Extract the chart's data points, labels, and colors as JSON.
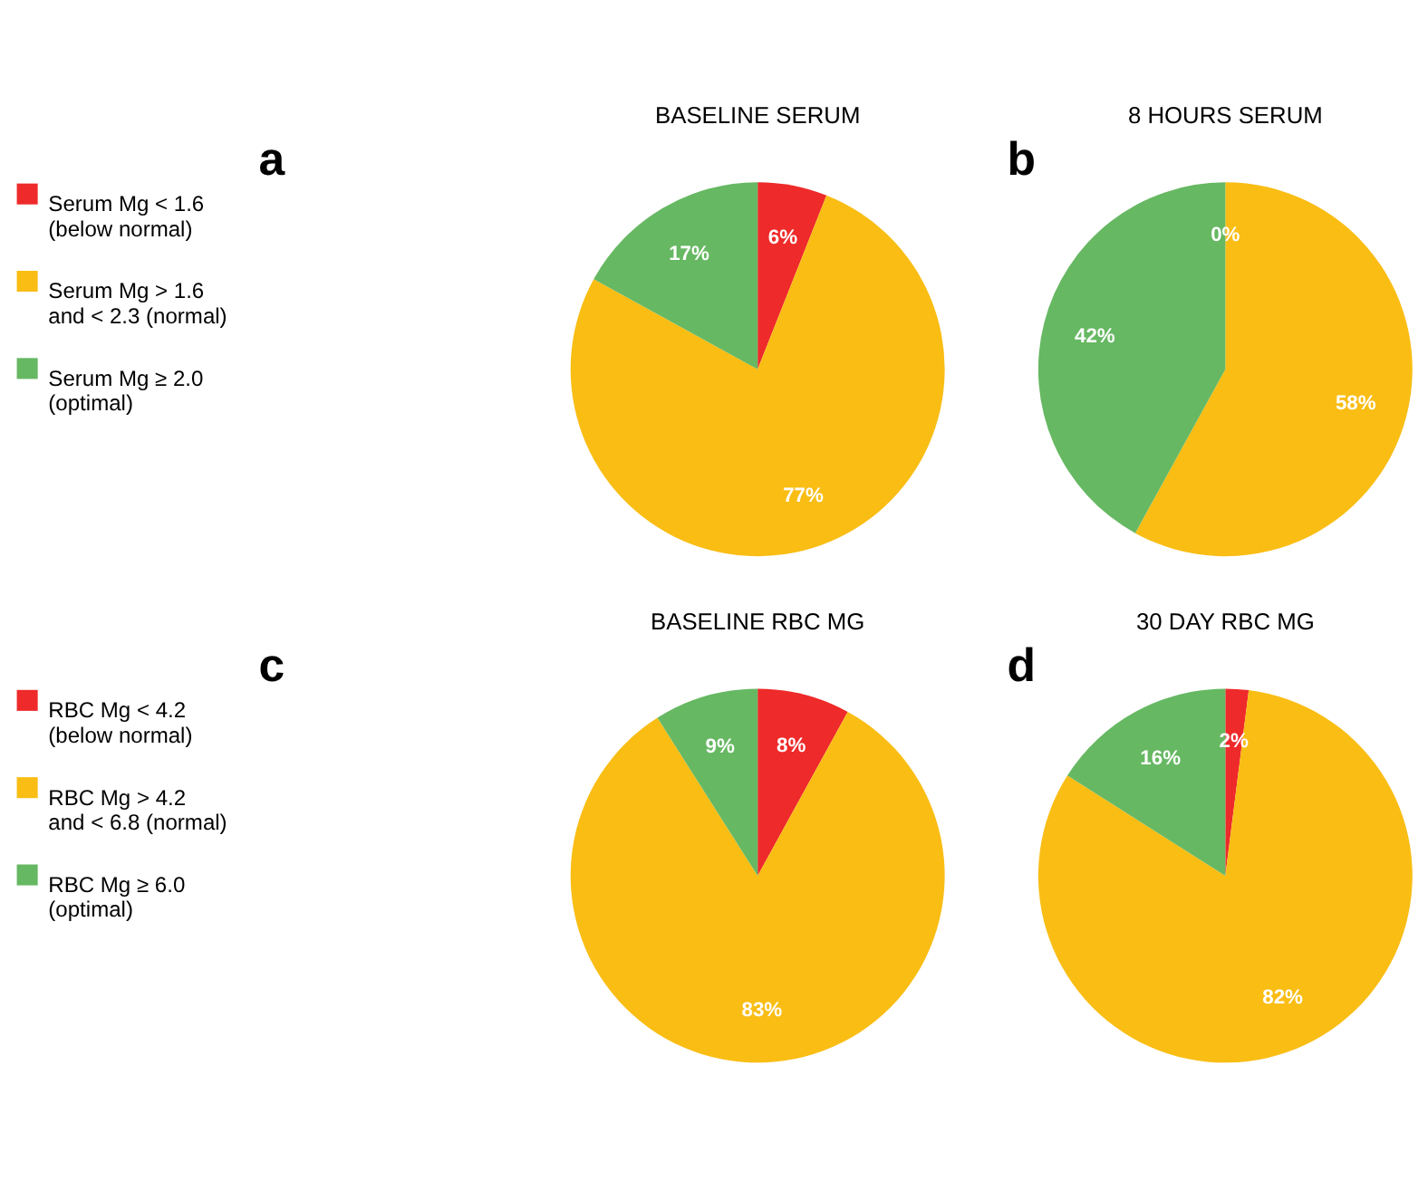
{
  "chart_data": [
    {
      "type": "pie",
      "title": "BASELINE SERUM",
      "annotations": [
        "a"
      ],
      "legend": "left",
      "categories": [
        "Serum Mg < 1.6\n(below normal)",
        "Serum Mg > 1.6\nand < 2.3 (normal)",
        "Serum Mg ≥ 2.0\n(optimal)"
      ],
      "values": [
        6,
        77,
        17
      ],
      "value_labels": [
        "6%",
        "77%",
        "17%"
      ],
      "colors": [
        "#ee2a2a",
        "#f9bd14",
        "#66b862"
      ]
    },
    {
      "type": "pie",
      "title": "8 HOURS SERUM",
      "annotations": [
        "b"
      ],
      "categories": [
        null,
        null,
        null
      ],
      "values": [
        0,
        58,
        42
      ],
      "value_labels": [
        "0%",
        "58%",
        "42%"
      ],
      "colors": [
        "#ee2a2a",
        "#f9bd14",
        "#66b862"
      ]
    },
    {
      "type": "pie",
      "title": "BASELINE RBC MG",
      "annotations": [
        "c"
      ],
      "legend": "left",
      "categories": [
        "RBC Mg < 4.2\n(below normal)",
        "RBC Mg > 4.2\nand < 6.8 (normal)",
        "RBC Mg ≥ 6.0\n(optimal)"
      ],
      "values": [
        8,
        83,
        9
      ],
      "value_labels": [
        "8%",
        "83%",
        "9%"
      ],
      "colors": [
        "#ee2a2a",
        "#f9bd14",
        "#66b862"
      ]
    },
    {
      "type": "pie",
      "title": "30 DAY RBC MG",
      "annotations": [
        "d"
      ],
      "categories": [
        null,
        null,
        null
      ],
      "values": [
        2,
        82,
        16
      ],
      "value_labels": [
        "2%",
        "82%",
        "16%"
      ],
      "colors": [
        "#ee2a2a",
        "#f9bd14",
        "#66b862"
      ]
    }
  ]
}
